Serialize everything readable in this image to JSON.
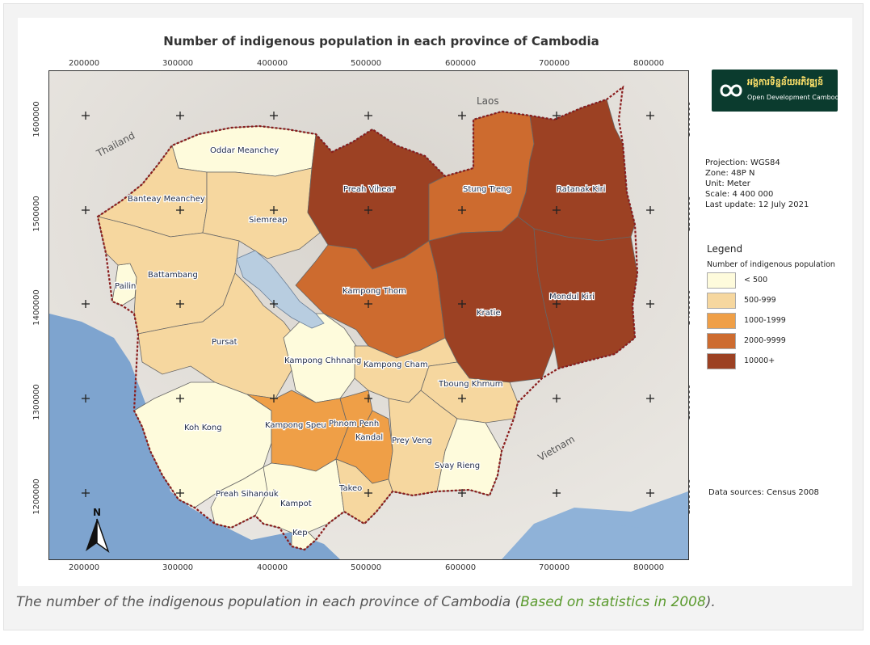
{
  "map": {
    "title": "Number of indigenous population in each province of Cambodia",
    "x_ticks": [
      "200000",
      "300000",
      "400000",
      "500000",
      "600000",
      "700000",
      "800000"
    ],
    "y_ticks": [
      "1600000",
      "1500000",
      "1400000",
      "1300000",
      "1200000"
    ],
    "countries": {
      "thailand": "Thailand",
      "laos": "Laos",
      "vietnam": "Vietnam"
    },
    "north": "N"
  },
  "logo": {
    "name_khmer": "អង្គការទិន្នន័យអភិវឌ្ឍន៍",
    "name": "Open Development Cambodia"
  },
  "info": {
    "projection": "Projection: WGS84",
    "zone": "Zone: 48P N",
    "unit": "Unit: Meter",
    "scale": "Scale: 4 400 000",
    "last_update": "Last update: 12 July 2021"
  },
  "legend": {
    "title": "Legend",
    "subtitle": "Number of indigenous population",
    "classes": [
      {
        "label": "< 500",
        "color": "#fefbdc"
      },
      {
        "label": "500-999",
        "color": "#f6d79f"
      },
      {
        "label": "1000-1999",
        "color": "#ef9f47"
      },
      {
        "label": "2000-9999",
        "color": "#cd6b2f"
      },
      {
        "label": "10000+",
        "color": "#9c4123"
      }
    ]
  },
  "provinces": [
    {
      "name": "Oddar Meanchey",
      "class": "< 500"
    },
    {
      "name": "Banteay Meanchey",
      "class": "500-999"
    },
    {
      "name": "Siemreap",
      "class": "500-999"
    },
    {
      "name": "Preah Vihear",
      "class": "10000+"
    },
    {
      "name": "Stung Treng",
      "class": "2000-9999"
    },
    {
      "name": "Ratanak Kiri",
      "class": "10000+"
    },
    {
      "name": "Pailin",
      "class": "< 500"
    },
    {
      "name": "Battambang",
      "class": "500-999"
    },
    {
      "name": "Kampong Thom",
      "class": "2000-9999"
    },
    {
      "name": "Kratie",
      "class": "10000+"
    },
    {
      "name": "Mondul Kiri",
      "class": "10000+"
    },
    {
      "name": "Pursat",
      "class": "500-999"
    },
    {
      "name": "Kampong Chhnang",
      "class": "< 500"
    },
    {
      "name": "Kampong Cham",
      "class": "500-999"
    },
    {
      "name": "Tboung Khmum",
      "class": "500-999"
    },
    {
      "name": "Koh Kong",
      "class": "< 500"
    },
    {
      "name": "Kampong Speu",
      "class": "1000-1999"
    },
    {
      "name": "Phnom Penh",
      "class": "1000-1999"
    },
    {
      "name": "Kandal",
      "class": "1000-1999"
    },
    {
      "name": "Prey Veng",
      "class": "500-999"
    },
    {
      "name": "Svay Rieng",
      "class": "< 500"
    },
    {
      "name": "Preah Sihanouk",
      "class": "< 500"
    },
    {
      "name": "Kampot",
      "class": "< 500"
    },
    {
      "name": "Takeo",
      "class": "500-999"
    },
    {
      "name": "Kep",
      "class": "< 500"
    }
  ],
  "data_sources": "Data sources: Census 2008",
  "caption": {
    "text": "The number of the indigenous population in each province of Cambodia (",
    "link": "Based on statistics in 2008",
    "end": ")."
  }
}
